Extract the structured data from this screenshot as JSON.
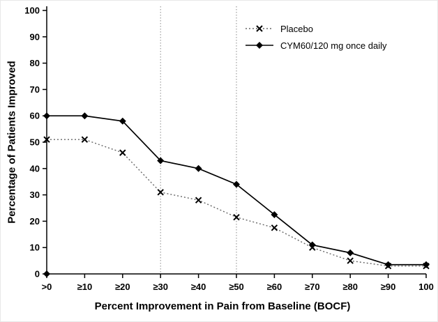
{
  "chart_data": {
    "type": "line",
    "title": "",
    "xlabel": "Percent Improvement in Pain from Baseline (BOCF)",
    "ylabel": "Percentage of Patients Improved",
    "categories": [
      ">0",
      "≥10",
      "≥20",
      "≥30",
      "≥40",
      "≥50",
      "≥60",
      "≥70",
      "≥80",
      "≥90",
      "100"
    ],
    "ylim": [
      0,
      100
    ],
    "ytick_step": 10,
    "ytick_labels": [
      "0",
      "10",
      "20",
      "30",
      "40",
      "50",
      "60",
      "70",
      "80",
      "90",
      "100"
    ],
    "grid": false,
    "legend_position": "top-right",
    "reference_lines_x": [
      "≥30",
      "≥50"
    ],
    "reference_line_color": "#8a8a8a",
    "axis_color": "#000000",
    "series": [
      {
        "name": "Placebo",
        "marker": "x",
        "line_style": "dotted",
        "line_color": "#666666",
        "marker_color": "#000000",
        "values": [
          51,
          51,
          46,
          31,
          28,
          21.5,
          17.5,
          10,
          5,
          3,
          3
        ]
      },
      {
        "name": "CYM60/120 mg once daily",
        "marker": "diamond",
        "line_style": "solid",
        "line_color": "#000000",
        "marker_color": "#000000",
        "values": [
          60,
          60,
          58,
          43,
          40,
          34,
          22.5,
          11,
          8,
          3.5,
          3.5
        ]
      }
    ],
    "origin_marker": {
      "x": ">0",
      "y": 0,
      "marker": "diamond"
    }
  }
}
